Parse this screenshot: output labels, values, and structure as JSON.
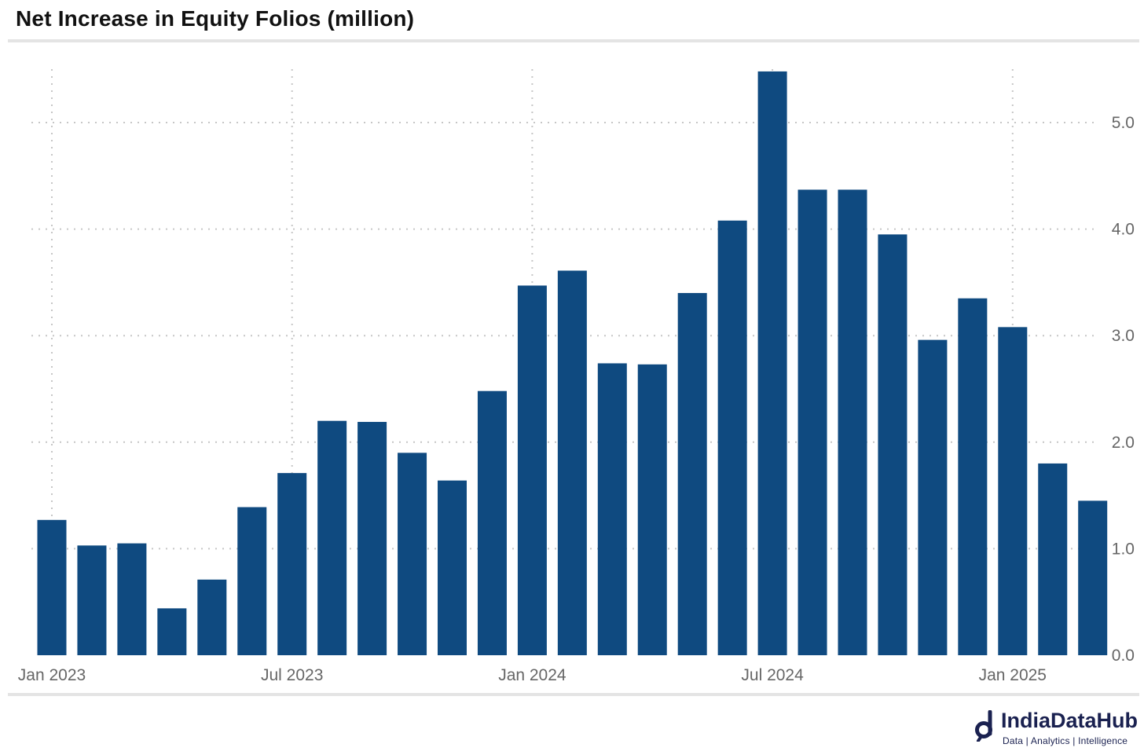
{
  "title": "Net Increase in Equity Folios (million)",
  "brand": {
    "name": "IndiaDataHub",
    "tagline": "Data | Analytics | Intelligence",
    "color": "#1a2150"
  },
  "colors": {
    "bar": "#0f4a80",
    "grid": "#c6c6c6",
    "rule": "#e4e4e4",
    "tick_label": "#666666"
  },
  "chart_data": {
    "type": "bar",
    "title": "Net Increase in Equity Folios (million)",
    "xlabel": "",
    "ylabel": "",
    "y_axis_position": "right",
    "ylim": [
      0,
      5.5
    ],
    "yticks": [
      "0.0",
      "1.0",
      "2.0",
      "3.0",
      "4.0",
      "5.0"
    ],
    "grid": "dotted",
    "legend": "none",
    "x_tick_labels": [
      {
        "label": "Jan 2023",
        "category_index": 0
      },
      {
        "label": "Jul 2023",
        "category_index": 6
      },
      {
        "label": "Jan 2024",
        "category_index": 12
      },
      {
        "label": "Jul 2024",
        "category_index": 18
      },
      {
        "label": "Jan 2025",
        "category_index": 24
      }
    ],
    "categories": [
      "Jan 2023",
      "Feb 2023",
      "Mar 2023",
      "Apr 2023",
      "May 2023",
      "Jun 2023",
      "Jul 2023",
      "Aug 2023",
      "Sep 2023",
      "Oct 2023",
      "Nov 2023",
      "Dec 2023",
      "Jan 2024",
      "Feb 2024",
      "Mar 2024",
      "Apr 2024",
      "May 2024",
      "Jun 2024",
      "Jul 2024",
      "Aug 2024",
      "Sep 2024",
      "Oct 2024",
      "Nov 2024",
      "Dec 2024",
      "Jan 2025",
      "Feb 2025",
      "Mar 2025"
    ],
    "values": [
      1.27,
      1.03,
      1.05,
      0.44,
      0.71,
      1.39,
      1.71,
      2.2,
      2.19,
      1.9,
      1.64,
      2.48,
      3.47,
      3.61,
      2.74,
      2.73,
      3.4,
      4.08,
      5.48,
      4.37,
      4.37,
      3.95,
      2.96,
      3.35,
      3.08,
      1.8,
      1.45
    ]
  }
}
